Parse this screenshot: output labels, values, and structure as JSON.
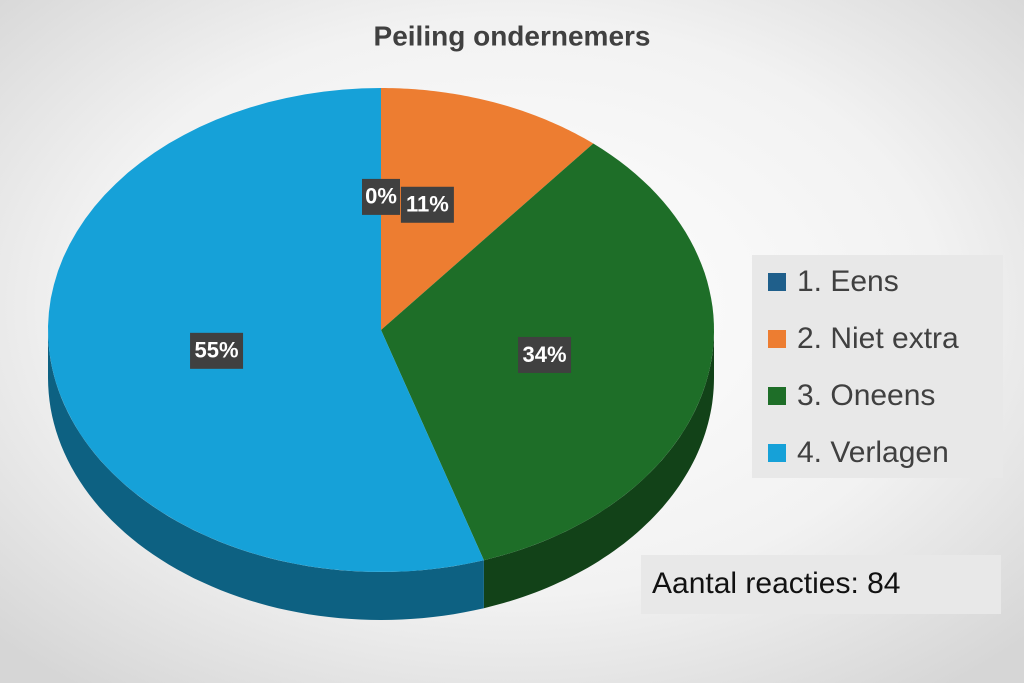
{
  "chart_data": {
    "type": "pie",
    "title": "Peiling ondernemers",
    "categories": [
      "1. Eens",
      "2. Niet extra",
      "3. Oneens",
      "4. Verlagen"
    ],
    "values": [
      0,
      11,
      34,
      55
    ],
    "value_labels": [
      "0%",
      "11%",
      "34%",
      "55%"
    ],
    "colors": [
      "#1f5f8b",
      "#ed7d31",
      "#1e6e28",
      "#16a1d8"
    ],
    "annotation": "Aantal reacties: 84"
  }
}
